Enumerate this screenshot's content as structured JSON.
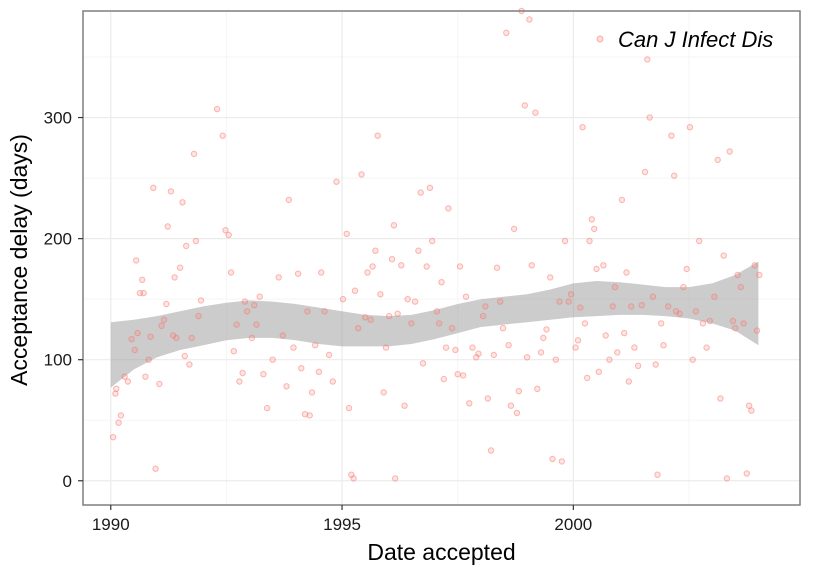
{
  "chart_data": {
    "type": "scatter",
    "title": "",
    "xlabel": "Date accepted",
    "ylabel": "Acceptance delay (days)",
    "xlim": [
      1989.4,
      2004.9
    ],
    "ylim": [
      -20,
      388
    ],
    "x_ticks": [
      1990,
      1995,
      2000
    ],
    "x_tick_labels": [
      "1990",
      "1995",
      "2000"
    ],
    "y_ticks": [
      0,
      100,
      200,
      300
    ],
    "y_tick_labels": [
      "0",
      "100",
      "200",
      "300"
    ],
    "grid": true,
    "legend": {
      "position": "top-right",
      "entries": [
        "Can J Infect Dis"
      ]
    },
    "colors": {
      "points": "#f8766d",
      "band": "#999999",
      "panel_border": "#7f7f7f",
      "grid_major": "#ebebeb",
      "grid_minor": "#f5f5f5"
    },
    "series": [
      {
        "name": "Can J Infect Dis",
        "points": [
          [
            1990.05,
            36
          ],
          [
            1990.1,
            72
          ],
          [
            1990.17,
            48
          ],
          [
            1990.22,
            54
          ],
          [
            1990.12,
            76
          ],
          [
            1990.3,
            86
          ],
          [
            1990.37,
            82
          ],
          [
            1990.45,
            117
          ],
          [
            1990.52,
            108
          ],
          [
            1990.58,
            122
          ],
          [
            1990.63,
            155
          ],
          [
            1990.55,
            182
          ],
          [
            1990.68,
            166
          ],
          [
            1990.71,
            155
          ],
          [
            1990.75,
            86
          ],
          [
            1990.82,
            100
          ],
          [
            1990.86,
            119
          ],
          [
            1990.92,
            242
          ],
          [
            1990.97,
            10
          ],
          [
            1991.05,
            80
          ],
          [
            1991.1,
            128
          ],
          [
            1991.15,
            133
          ],
          [
            1991.2,
            146
          ],
          [
            1991.23,
            210
          ],
          [
            1991.3,
            239
          ],
          [
            1991.35,
            120
          ],
          [
            1991.38,
            168
          ],
          [
            1991.42,
            118
          ],
          [
            1991.5,
            176
          ],
          [
            1991.55,
            230
          ],
          [
            1991.6,
            103
          ],
          [
            1991.63,
            194
          ],
          [
            1991.7,
            96
          ],
          [
            1991.75,
            118
          ],
          [
            1991.8,
            270
          ],
          [
            1991.84,
            198
          ],
          [
            1991.9,
            136
          ],
          [
            1991.95,
            149
          ],
          [
            1992.3,
            307
          ],
          [
            1992.42,
            285
          ],
          [
            1992.48,
            207
          ],
          [
            1992.55,
            203
          ],
          [
            1992.6,
            172
          ],
          [
            1992.66,
            107
          ],
          [
            1992.72,
            129
          ],
          [
            1992.78,
            82
          ],
          [
            1992.85,
            89
          ],
          [
            1992.9,
            148
          ],
          [
            1992.95,
            140
          ],
          [
            1993.05,
            118
          ],
          [
            1993.1,
            145
          ],
          [
            1993.15,
            129
          ],
          [
            1993.22,
            152
          ],
          [
            1993.3,
            88
          ],
          [
            1993.38,
            60
          ],
          [
            1993.5,
            100
          ],
          [
            1993.63,
            168
          ],
          [
            1993.72,
            120
          ],
          [
            1993.8,
            78
          ],
          [
            1993.85,
            232
          ],
          [
            1993.95,
            110
          ],
          [
            1994.05,
            171
          ],
          [
            1994.12,
            93
          ],
          [
            1994.2,
            55
          ],
          [
            1994.25,
            140
          ],
          [
            1994.3,
            54
          ],
          [
            1994.35,
            73
          ],
          [
            1994.42,
            112
          ],
          [
            1994.5,
            90
          ],
          [
            1994.55,
            172
          ],
          [
            1994.62,
            140
          ],
          [
            1994.72,
            104
          ],
          [
            1994.8,
            82
          ],
          [
            1994.88,
            247
          ],
          [
            1995.02,
            150
          ],
          [
            1995.1,
            204
          ],
          [
            1995.15,
            60
          ],
          [
            1995.2,
            5
          ],
          [
            1995.25,
            2
          ],
          [
            1995.28,
            157
          ],
          [
            1995.35,
            126
          ],
          [
            1995.42,
            253
          ],
          [
            1995.5,
            135
          ],
          [
            1995.55,
            172
          ],
          [
            1995.62,
            133
          ],
          [
            1995.66,
            177
          ],
          [
            1995.72,
            190
          ],
          [
            1995.77,
            285
          ],
          [
            1995.83,
            154
          ],
          [
            1995.9,
            73
          ],
          [
            1995.95,
            110
          ],
          [
            1996.02,
            136
          ],
          [
            1996.08,
            183
          ],
          [
            1996.12,
            211
          ],
          [
            1996.15,
            2
          ],
          [
            1996.2,
            138
          ],
          [
            1996.28,
            178
          ],
          [
            1996.35,
            62
          ],
          [
            1996.42,
            150
          ],
          [
            1996.5,
            130
          ],
          [
            1996.58,
            148
          ],
          [
            1996.65,
            190
          ],
          [
            1996.7,
            238
          ],
          [
            1996.75,
            97
          ],
          [
            1996.83,
            177
          ],
          [
            1996.9,
            242
          ],
          [
            1996.95,
            198
          ],
          [
            1997.05,
            140
          ],
          [
            1997.1,
            130
          ],
          [
            1997.15,
            164
          ],
          [
            1997.2,
            84
          ],
          [
            1997.25,
            110
          ],
          [
            1997.3,
            225
          ],
          [
            1997.38,
            126
          ],
          [
            1997.45,
            108
          ],
          [
            1997.5,
            88
          ],
          [
            1997.55,
            177
          ],
          [
            1997.62,
            87
          ],
          [
            1997.68,
            152
          ],
          [
            1997.75,
            64
          ],
          [
            1997.82,
            110
          ],
          [
            1997.9,
            102
          ],
          [
            1997.95,
            105
          ],
          [
            1998.05,
            136
          ],
          [
            1998.1,
            144
          ],
          [
            1998.15,
            68
          ],
          [
            1998.22,
            25
          ],
          [
            1998.28,
            104
          ],
          [
            1998.35,
            176
          ],
          [
            1998.42,
            148
          ],
          [
            1998.48,
            126
          ],
          [
            1998.55,
            370
          ],
          [
            1998.6,
            112
          ],
          [
            1998.65,
            62
          ],
          [
            1998.72,
            208
          ],
          [
            1998.78,
            56
          ],
          [
            1998.82,
            74
          ],
          [
            1998.88,
            389
          ],
          [
            1998.95,
            310
          ],
          [
            1999.0,
            102
          ],
          [
            1999.05,
            381
          ],
          [
            1999.1,
            178
          ],
          [
            1999.18,
            304
          ],
          [
            1999.22,
            76
          ],
          [
            1999.3,
            106
          ],
          [
            1999.35,
            118
          ],
          [
            1999.42,
            125
          ],
          [
            1999.5,
            168
          ],
          [
            1999.55,
            18
          ],
          [
            1999.62,
            100
          ],
          [
            1999.7,
            148
          ],
          [
            1999.75,
            16
          ],
          [
            1999.82,
            198
          ],
          [
            1999.9,
            148
          ],
          [
            1999.95,
            154
          ],
          [
            2000.05,
            110
          ],
          [
            2000.1,
            116
          ],
          [
            2000.15,
            143
          ],
          [
            2000.2,
            292
          ],
          [
            2000.25,
            130
          ],
          [
            2000.3,
            85
          ],
          [
            2000.35,
            198
          ],
          [
            2000.4,
            216
          ],
          [
            2000.45,
            208
          ],
          [
            2000.5,
            175
          ],
          [
            2000.55,
            90
          ],
          [
            2000.65,
            178
          ],
          [
            2000.7,
            120
          ],
          [
            2000.78,
            100
          ],
          [
            2000.85,
            144
          ],
          [
            2000.9,
            160
          ],
          [
            2000.95,
            106
          ],
          [
            2001.05,
            232
          ],
          [
            2001.1,
            122
          ],
          [
            2001.15,
            172
          ],
          [
            2001.2,
            82
          ],
          [
            2001.25,
            144
          ],
          [
            2001.32,
            110
          ],
          [
            2001.4,
            95
          ],
          [
            2001.48,
            145
          ],
          [
            2001.55,
            255
          ],
          [
            2001.6,
            348
          ],
          [
            2001.65,
            300
          ],
          [
            2001.72,
            152
          ],
          [
            2001.78,
            96
          ],
          [
            2001.82,
            5
          ],
          [
            2001.9,
            130
          ],
          [
            2001.95,
            112
          ],
          [
            2002.05,
            144
          ],
          [
            2002.12,
            285
          ],
          [
            2002.18,
            252
          ],
          [
            2002.22,
            140
          ],
          [
            2002.3,
            138
          ],
          [
            2002.38,
            160
          ],
          [
            2002.45,
            175
          ],
          [
            2002.52,
            292
          ],
          [
            2002.58,
            100
          ],
          [
            2002.65,
            140
          ],
          [
            2002.72,
            198
          ],
          [
            2002.8,
            130
          ],
          [
            2002.88,
            110
          ],
          [
            2002.95,
            132
          ],
          [
            2003.05,
            152
          ],
          [
            2003.12,
            265
          ],
          [
            2003.18,
            68
          ],
          [
            2003.25,
            186
          ],
          [
            2003.32,
            2
          ],
          [
            2003.38,
            272
          ],
          [
            2003.45,
            132
          ],
          [
            2003.5,
            126
          ],
          [
            2003.55,
            170
          ],
          [
            2003.62,
            160
          ],
          [
            2003.68,
            130
          ],
          [
            2003.75,
            6
          ],
          [
            2003.8,
            62
          ],
          [
            2003.85,
            58
          ],
          [
            2003.92,
            178
          ],
          [
            2003.97,
            124
          ],
          [
            2004.02,
            170
          ]
        ]
      }
    ],
    "smooth": {
      "x": [
        1990.0,
        1990.5,
        1991.0,
        1991.5,
        1992.0,
        1992.5,
        1993.0,
        1993.5,
        1994.0,
        1994.5,
        1995.0,
        1995.5,
        1996.0,
        1996.5,
        1997.0,
        1997.5,
        1998.0,
        1998.5,
        1999.0,
        1999.5,
        2000.0,
        2000.5,
        2001.0,
        2001.5,
        2002.0,
        2002.5,
        2003.0,
        2003.5,
        2004.0
      ],
      "upper": [
        131,
        133,
        136,
        140,
        144,
        147,
        149,
        148,
        146,
        143,
        140,
        137,
        136,
        137,
        141,
        146,
        150,
        152,
        154,
        158,
        163,
        165,
        164,
        162,
        160,
        160,
        163,
        170,
        181
      ],
      "lower": [
        77,
        92,
        102,
        108,
        112,
        116,
        118,
        118,
        116,
        113,
        111,
        111,
        111,
        113,
        117,
        122,
        127,
        129,
        131,
        133,
        135,
        136,
        137,
        137,
        136,
        134,
        130,
        124,
        112
      ]
    }
  }
}
